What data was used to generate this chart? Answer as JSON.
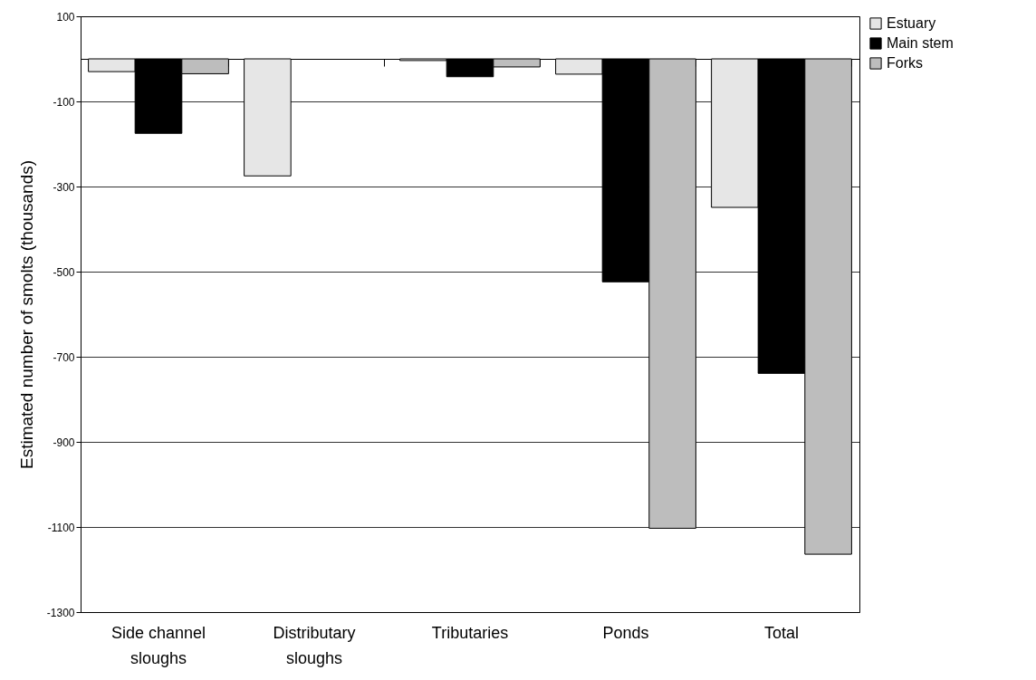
{
  "chart_data": {
    "type": "bar",
    "ylabel": "Estimated number of smolts (thousands)",
    "categories": [
      "Side channel sloughs",
      "Distributary sloughs",
      "Tributaries",
      "Ponds",
      "Total"
    ],
    "series": [
      {
        "name": "Estuary",
        "color": "#e6e6e6",
        "values": [
          -30,
          -275,
          -4,
          -36,
          -349
        ]
      },
      {
        "name": "Main stem",
        "color": "#000000",
        "values": [
          -175,
          0,
          -42,
          -524,
          -739
        ]
      },
      {
        "name": "Forks",
        "color": "#bdbdbd",
        "values": [
          -35,
          0,
          -19,
          -1103,
          -1164
        ]
      }
    ],
    "ylim": [
      -1300,
      100
    ],
    "yticks": [
      100,
      -100,
      -300,
      -500,
      -700,
      -900,
      -1100,
      -1300
    ],
    "grid": "y",
    "legend": "right"
  }
}
